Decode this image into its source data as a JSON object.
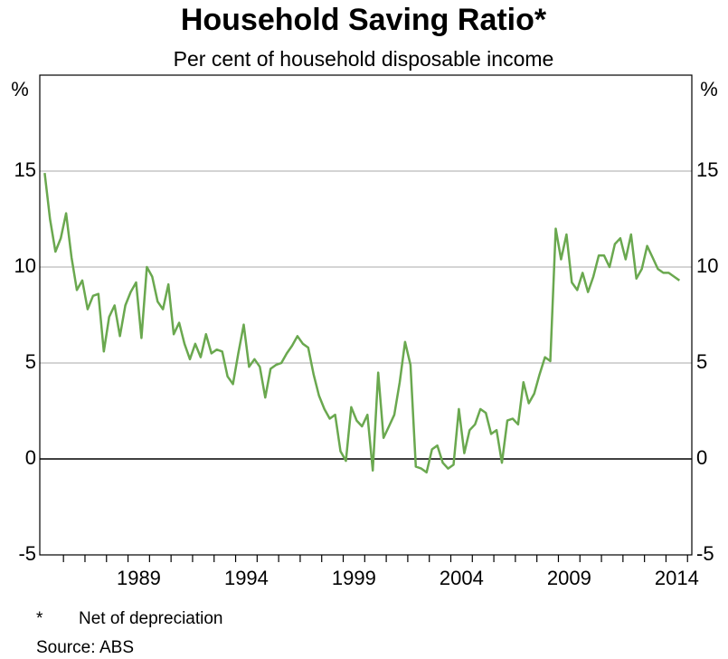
{
  "chart_data": {
    "type": "line",
    "title": "Household Saving Ratio*",
    "subtitle": "Per cent of household disposable income",
    "y_unit_left": "%",
    "y_unit_right": "%",
    "x": [
      1985.125,
      1985.375,
      1985.625,
      1985.875,
      1986.125,
      1986.375,
      1986.625,
      1986.875,
      1987.125,
      1987.375,
      1987.625,
      1987.875,
      1988.125,
      1988.375,
      1988.625,
      1988.875,
      1989.125,
      1989.375,
      1989.625,
      1989.875,
      1990.125,
      1990.375,
      1990.625,
      1990.875,
      1991.125,
      1991.375,
      1991.625,
      1991.875,
      1992.125,
      1992.375,
      1992.625,
      1992.875,
      1993.125,
      1993.375,
      1993.625,
      1993.875,
      1994.125,
      1994.375,
      1994.625,
      1994.875,
      1995.125,
      1995.375,
      1995.625,
      1995.875,
      1996.125,
      1996.375,
      1996.625,
      1996.875,
      1997.125,
      1997.375,
      1997.625,
      1997.875,
      1998.125,
      1998.375,
      1998.625,
      1998.875,
      1999.125,
      1999.375,
      1999.625,
      1999.875,
      2000.125,
      2000.375,
      2000.625,
      2000.875,
      2001.125,
      2001.375,
      2001.625,
      2001.875,
      2002.125,
      2002.375,
      2002.625,
      2002.875,
      2003.125,
      2003.375,
      2003.625,
      2003.875,
      2004.125,
      2004.375,
      2004.625,
      2004.875,
      2005.125,
      2005.375,
      2005.625,
      2005.875,
      2006.125,
      2006.375,
      2006.625,
      2006.875,
      2007.125,
      2007.375,
      2007.625,
      2007.875,
      2008.125,
      2008.375,
      2008.625,
      2008.875,
      2009.125,
      2009.375,
      2009.625,
      2009.875,
      2010.125,
      2010.375,
      2010.625,
      2010.875,
      2011.125,
      2011.375,
      2011.625,
      2011.875,
      2012.125,
      2012.375,
      2012.625,
      2012.875,
      2013.125,
      2013.375,
      2013.625,
      2013.875,
      2014.125,
      2014.375,
      2014.625
    ],
    "series": [
      {
        "name": "Household saving ratio",
        "color": "#6aa84f",
        "values": [
          14.9,
          12.5,
          10.8,
          11.5,
          12.8,
          10.5,
          8.8,
          9.3,
          7.8,
          8.5,
          8.6,
          5.6,
          7.4,
          8.0,
          6.4,
          8.0,
          8.7,
          9.2,
          6.3,
          10.0,
          9.5,
          8.2,
          7.8,
          9.1,
          6.5,
          7.1,
          6.0,
          5.2,
          6.0,
          5.3,
          6.5,
          5.5,
          5.7,
          5.6,
          4.3,
          3.9,
          5.5,
          7.0,
          4.8,
          5.2,
          4.8,
          3.2,
          4.7,
          4.9,
          5.0,
          5.5,
          5.9,
          6.4,
          6.0,
          5.8,
          4.4,
          3.3,
          2.6,
          2.1,
          2.3,
          0.4,
          -0.1,
          2.7,
          2.0,
          1.7,
          2.3,
          -0.6,
          4.5,
          1.1,
          1.7,
          2.3,
          4.0,
          6.1,
          4.9,
          -0.4,
          -0.5,
          -0.7,
          0.5,
          0.7,
          -0.2,
          -0.5,
          -0.3,
          2.6,
          0.3,
          1.5,
          1.8,
          2.6,
          2.4,
          1.3,
          1.5,
          -0.2,
          2.0,
          2.1,
          1.8,
          4.0,
          2.9,
          3.4,
          4.4,
          5.3,
          5.1,
          12.0,
          10.4,
          11.7,
          9.2,
          8.8,
          9.7,
          8.7,
          9.5,
          10.6,
          10.6,
          10.0,
          11.2,
          11.5,
          10.4,
          11.7,
          9.4,
          9.9,
          11.1,
          10.5,
          9.9,
          9.7,
          9.7,
          9.5,
          9.3
        ]
      }
    ],
    "xlim": [
      1984.9,
      2015.2
    ],
    "xticks": [
      {
        "value": 1989.5,
        "label": "1989"
      },
      {
        "value": 1994.5,
        "label": "1994"
      },
      {
        "value": 1999.5,
        "label": "1999"
      },
      {
        "value": 2004.5,
        "label": "2004"
      },
      {
        "value": 2009.5,
        "label": "2009"
      },
      {
        "value": 2014.5,
        "label": "2014"
      }
    ],
    "xminorticks": [
      1986,
      1987,
      1988,
      1989,
      1990,
      1991,
      1992,
      1993,
      1994,
      1995,
      1996,
      1997,
      1998,
      1999,
      2000,
      2001,
      2002,
      2003,
      2004,
      2005,
      2006,
      2007,
      2008,
      2009,
      2010,
      2011,
      2012,
      2013,
      2014,
      2015
    ],
    "ylim": [
      -5,
      20
    ],
    "yticks": [
      -5,
      0,
      5,
      10,
      15
    ],
    "grid": true,
    "notes": [
      {
        "marker": "*",
        "text": "Net of depreciation"
      },
      {
        "marker": "Source:",
        "text": "ABS"
      }
    ]
  }
}
